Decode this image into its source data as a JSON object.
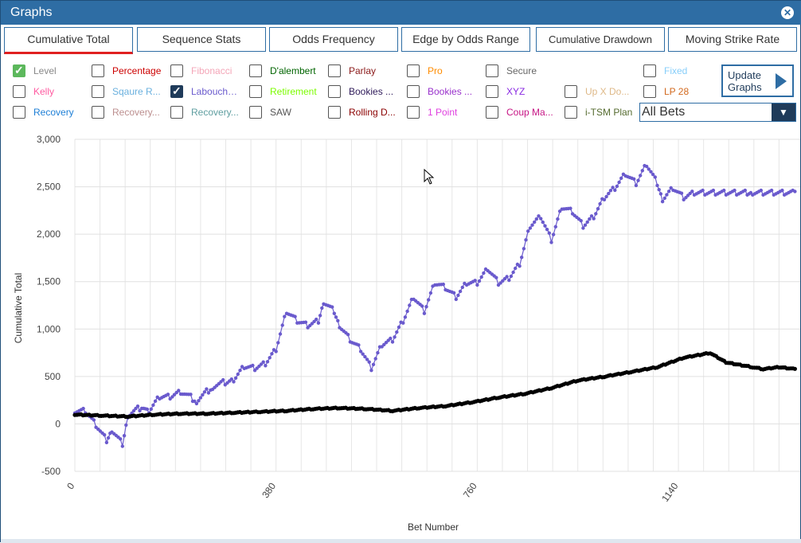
{
  "window": {
    "title": "Graphs"
  },
  "tabs": [
    {
      "label": "Cumulative Total",
      "active": true
    },
    {
      "label": "Sequence Stats"
    },
    {
      "label": "Odds Frequency"
    },
    {
      "label": "Edge by Odds Range"
    },
    {
      "label": "Cumulative Drawdown"
    },
    {
      "label": "Moving Strike Rate"
    }
  ],
  "options": [
    {
      "label": "Level",
      "color": "#888888",
      "checked": true
    },
    {
      "label": "Percentage",
      "color": "#cc0000",
      "checked": false
    },
    {
      "label": "Fibonacci",
      "color": "#f4a6b8",
      "checked": false
    },
    {
      "label": "D'alembert",
      "color": "#006400",
      "checked": false
    },
    {
      "label": "Parlay",
      "color": "#8b1a1a",
      "checked": false
    },
    {
      "label": "Pro",
      "color": "#ff8c00",
      "checked": false
    },
    {
      "label": "Secure",
      "color": "#666666",
      "checked": false
    },
    {
      "label": "Fixed",
      "color": "#87cefa",
      "checked": false
    },
    {
      "label": "Kelly",
      "color": "#ff5aa0",
      "checked": false
    },
    {
      "label": "Sqaure R...",
      "color": "#6ab0de",
      "checked": false
    },
    {
      "label": "Labouchere",
      "color": "#6a5acd",
      "checked": true
    },
    {
      "label": "Retirement",
      "color": "#7cfc00",
      "checked": false
    },
    {
      "label": "Bookies ...",
      "color": "#2f1b5a",
      "checked": false
    },
    {
      "label": "Bookies ...",
      "color": "#9932cc",
      "checked": false
    },
    {
      "label": "XYZ",
      "color": "#8a2be2",
      "checked": false
    },
    {
      "label": "Up X Do...",
      "color": "#deb887",
      "checked": false
    },
    {
      "label": "LP 28",
      "color": "#d2691e",
      "checked": false
    },
    {
      "label": "Recovery",
      "color": "#1e7fd6",
      "checked": false
    },
    {
      "label": "Recovery...",
      "color": "#bc8f8f",
      "checked": false
    },
    {
      "label": "Recovery...",
      "color": "#5f9ea0",
      "checked": false
    },
    {
      "label": "SAW",
      "color": "#555555",
      "checked": false
    },
    {
      "label": "Rolling D...",
      "color": "#8b0000",
      "checked": false
    },
    {
      "label": "1 Point",
      "color": "#e040e0",
      "checked": false
    },
    {
      "label": "Coup Ma...",
      "color": "#c71585",
      "checked": false
    },
    {
      "label": "i-TSM Plan",
      "color": "#556b2f",
      "checked": false
    }
  ],
  "update_button": {
    "label": "Update\nGraphs"
  },
  "bets_select": {
    "value": "All Bets"
  },
  "chart_data": {
    "type": "line",
    "xlabel": "Bet Number",
    "ylabel": "Cumulative Total",
    "x_ticks": [
      "0",
      "380",
      "760",
      "1140"
    ],
    "y_ticks": [
      "3,000",
      "2,500",
      "2,000",
      "1,500",
      "1,000",
      "500",
      "0",
      "-500"
    ],
    "ylim": [
      -500,
      3000
    ],
    "xlim": [
      0,
      1370
    ],
    "grid": true,
    "series": [
      {
        "color": "#6a5acd",
        "x": [
          0,
          20,
          40,
          60,
          70,
          90,
          100,
          130,
          140,
          160,
          180,
          200,
          230,
          260,
          300,
          320,
          340,
          360,
          380,
          400,
          420,
          440,
          460,
          470,
          490,
          500,
          520,
          540,
          560,
          580,
          600,
          620,
          640,
          660,
          680,
          700,
          720,
          740,
          760,
          780,
          800,
          820,
          840,
          860,
          880,
          900,
          920,
          940,
          960,
          980,
          1000,
          1020,
          1040,
          1060,
          1080,
          1100,
          1110,
          1130,
          1150,
          1170,
          1190,
          1210,
          1230,
          1250,
          1270,
          1280,
          1300,
          1320,
          1340,
          1360
        ],
        "y": [
          150,
          150,
          0,
          -160,
          -50,
          -200,
          100,
          200,
          150,
          300,
          300,
          350,
          250,
          400,
          480,
          620,
          600,
          650,
          800,
          1200,
          1100,
          1050,
          1100,
          1300,
          1200,
          1050,
          900,
          800,
          600,
          850,
          900,
          1100,
          1350,
          1200,
          1500,
          1450,
          1350,
          1500,
          1500,
          1650,
          1500,
          1550,
          1700,
          2100,
          2200,
          1950,
          2300,
          2250,
          2100,
          2200,
          2400,
          2500,
          2650,
          2550,
          2750,
          2550,
          2380,
          2500,
          2400,
          2450,
          2450,
          2450,
          2450,
          2450,
          2450,
          2450,
          2450,
          2450,
          2450,
          2450
        ]
      },
      {
        "color": "#000000",
        "x": [
          0,
          50,
          100,
          150,
          200,
          250,
          300,
          350,
          400,
          450,
          500,
          550,
          600,
          650,
          700,
          750,
          800,
          850,
          900,
          950,
          1000,
          1050,
          1100,
          1150,
          1200,
          1230,
          1260,
          1280,
          1300,
          1330,
          1360
        ],
        "y": [
          100,
          90,
          80,
          100,
          110,
          110,
          120,
          130,
          140,
          160,
          170,
          160,
          140,
          170,
          190,
          230,
          280,
          320,
          380,
          460,
          500,
          550,
          600,
          700,
          750,
          650,
          620,
          600,
          580,
          600,
          580
        ]
      }
    ]
  }
}
